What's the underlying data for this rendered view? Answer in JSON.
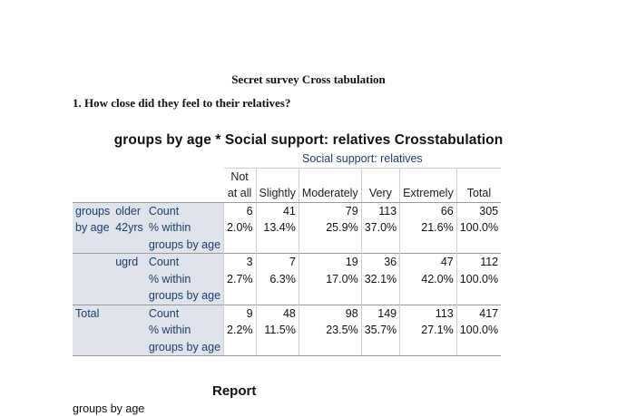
{
  "doc_title": "Secret survey Cross tabulation",
  "question": "1. How close did they feel to their relatives?",
  "crosstab": {
    "title": "groups by age * Social support: relatives Crosstabulation",
    "supergroup": "Social support: relatives",
    "col_notatall_1": "Not",
    "col_notatall_2": "at all",
    "col_slightly": "Slightly",
    "col_moderately": "Moderately",
    "col_very": "Very",
    "col_extremely": "Extremely",
    "col_total": "Total",
    "row_groups_1": "groups",
    "row_groups_2": "by age",
    "row_older_1": "older",
    "row_older_2": "42yrs",
    "row_ugrd": "ugrd",
    "row_total": "Total",
    "stat_count": "Count",
    "stat_pct_1": "% within",
    "stat_pct_2": "groups by age",
    "older_count": [
      "6",
      "41",
      "79",
      "113",
      "66",
      "305"
    ],
    "older_pct": [
      "2.0%",
      "13.4%",
      "25.9%",
      "37.0%",
      "21.6%",
      "100.0%"
    ],
    "ugrd_count": [
      "3",
      "7",
      "19",
      "36",
      "47",
      "112"
    ],
    "ugrd_pct": [
      "2.7%",
      "6.3%",
      "17.0%",
      "32.1%",
      "42.0%",
      "100.0%"
    ],
    "total_count": [
      "9",
      "48",
      "98",
      "149",
      "113",
      "417"
    ],
    "total_pct": [
      "2.2%",
      "11.5%",
      "23.5%",
      "35.7%",
      "27.1%",
      "100.0%"
    ]
  },
  "report": {
    "title": "Report",
    "subtitle": "groups by age"
  }
}
